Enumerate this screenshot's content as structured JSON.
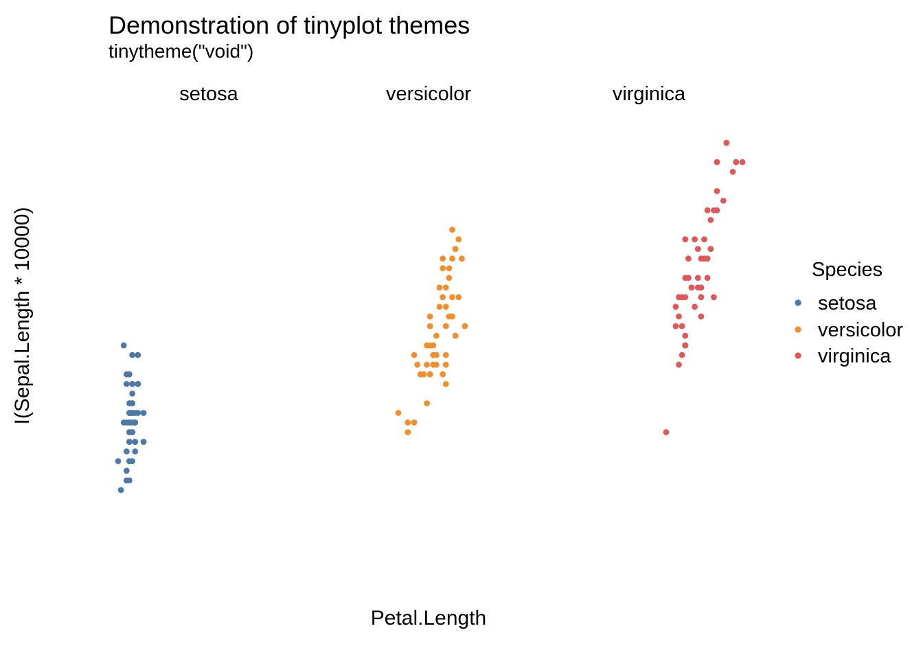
{
  "chart_data": {
    "type": "scatter",
    "title": "Demonstration of tinyplot themes",
    "subtitle": "tinytheme(\"void\")",
    "xlabel": "Petal.Length",
    "ylabel": "I(Sepal.Length * 10000)",
    "facet_by": "Species",
    "grid": false,
    "axes": false,
    "ylim": [
      41000,
      81000
    ],
    "legend": {
      "title": "Species",
      "position": "right",
      "entries": [
        {
          "name": "setosa",
          "color": "#4e79a7"
        },
        {
          "name": "versicolor",
          "color": "#f28e2b"
        },
        {
          "name": "virginica",
          "color": "#e15759"
        }
      ]
    },
    "facets": [
      {
        "label": "setosa",
        "xlim": [
          1.0,
          1.9
        ],
        "series": {
          "name": "setosa",
          "color": "#4e79a7",
          "points": [
            [
              1.4,
              51000
            ],
            [
              1.4,
              49000
            ],
            [
              1.3,
              47000
            ],
            [
              1.5,
              46000
            ],
            [
              1.4,
              50000
            ],
            [
              1.7,
              54000
            ],
            [
              1.4,
              46000
            ],
            [
              1.5,
              50000
            ],
            [
              1.4,
              44000
            ],
            [
              1.5,
              49000
            ],
            [
              1.5,
              54000
            ],
            [
              1.6,
              48000
            ],
            [
              1.4,
              48000
            ],
            [
              1.1,
              43000
            ],
            [
              1.2,
              58000
            ],
            [
              1.5,
              57000
            ],
            [
              1.3,
              54000
            ],
            [
              1.4,
              51000
            ],
            [
              1.7,
              57000
            ],
            [
              1.5,
              51000
            ],
            [
              1.7,
              54000
            ],
            [
              1.5,
              51000
            ],
            [
              1.0,
              46000
            ],
            [
              1.7,
              51000
            ],
            [
              1.9,
              48000
            ],
            [
              1.6,
              50000
            ],
            [
              1.6,
              50000
            ],
            [
              1.5,
              52000
            ],
            [
              1.4,
              52000
            ],
            [
              1.6,
              47000
            ],
            [
              1.6,
              48000
            ],
            [
              1.5,
              54000
            ],
            [
              1.5,
              52000
            ],
            [
              1.4,
              55000
            ],
            [
              1.5,
              49000
            ],
            [
              1.2,
              50000
            ],
            [
              1.3,
              55000
            ],
            [
              1.4,
              49000
            ],
            [
              1.3,
              44000
            ],
            [
              1.5,
              51000
            ],
            [
              1.3,
              50000
            ],
            [
              1.3,
              45000
            ],
            [
              1.3,
              44000
            ],
            [
              1.6,
              50000
            ],
            [
              1.9,
              51000
            ],
            [
              1.4,
              48000
            ],
            [
              1.6,
              51000
            ],
            [
              1.4,
              46000
            ],
            [
              1.5,
              53000
            ],
            [
              1.4,
              50000
            ]
          ]
        }
      },
      {
        "label": "versicolor",
        "xlim": [
          3.0,
          5.1
        ],
        "series": {
          "name": "versicolor",
          "color": "#f28e2b",
          "points": [
            [
              4.7,
              70000
            ],
            [
              4.5,
              64000
            ],
            [
              4.9,
              69000
            ],
            [
              4.0,
              55000
            ],
            [
              4.6,
              65000
            ],
            [
              4.5,
              57000
            ],
            [
              4.7,
              63000
            ],
            [
              3.3,
              49000
            ],
            [
              4.6,
              66000
            ],
            [
              3.9,
              52000
            ],
            [
              3.5,
              50000
            ],
            [
              4.2,
              59000
            ],
            [
              4.0,
              60000
            ],
            [
              4.7,
              61000
            ],
            [
              3.6,
              56000
            ],
            [
              4.4,
              67000
            ],
            [
              4.5,
              56000
            ],
            [
              4.1,
              58000
            ],
            [
              4.5,
              62000
            ],
            [
              3.9,
              56000
            ],
            [
              4.8,
              59000
            ],
            [
              4.0,
              61000
            ],
            [
              4.9,
              63000
            ],
            [
              4.7,
              61000
            ],
            [
              4.3,
              64000
            ],
            [
              4.4,
              66000
            ],
            [
              4.8,
              68000
            ],
            [
              5.0,
              67000
            ],
            [
              4.5,
              60000
            ],
            [
              3.5,
              57000
            ],
            [
              3.8,
              55000
            ],
            [
              3.7,
              55000
            ],
            [
              3.9,
              58000
            ],
            [
              5.1,
              60000
            ],
            [
              4.5,
              54000
            ],
            [
              4.5,
              60000
            ],
            [
              4.7,
              67000
            ],
            [
              4.4,
              63000
            ],
            [
              4.1,
              56000
            ],
            [
              4.0,
              55000
            ],
            [
              4.4,
              55000
            ],
            [
              4.6,
              61000
            ],
            [
              4.0,
              58000
            ],
            [
              3.3,
              50000
            ],
            [
              4.2,
              56000
            ],
            [
              4.2,
              57000
            ],
            [
              4.2,
              57000
            ],
            [
              4.3,
              62000
            ],
            [
              3.0,
              51000
            ],
            [
              4.1,
              57000
            ]
          ]
        }
      },
      {
        "label": "virginica",
        "xlim": [
          4.5,
          6.9
        ],
        "series": {
          "name": "virginica",
          "color": "#e15759",
          "points": [
            [
              6.0,
              63000
            ],
            [
              5.1,
              58000
            ],
            [
              5.9,
              71000
            ],
            [
              5.6,
              63000
            ],
            [
              5.8,
              65000
            ],
            [
              6.6,
              76000
            ],
            [
              4.5,
              49000
            ],
            [
              6.3,
              73000
            ],
            [
              5.8,
              67000
            ],
            [
              6.1,
              72000
            ],
            [
              5.1,
              65000
            ],
            [
              5.3,
              64000
            ],
            [
              5.5,
              68000
            ],
            [
              5.0,
              57000
            ],
            [
              5.1,
              58000
            ],
            [
              5.3,
              64000
            ],
            [
              5.5,
              65000
            ],
            [
              6.7,
              77000
            ],
            [
              6.9,
              77000
            ],
            [
              5.0,
              60000
            ],
            [
              5.7,
              69000
            ],
            [
              4.9,
              56000
            ],
            [
              6.7,
              77000
            ],
            [
              4.9,
              63000
            ],
            [
              5.7,
              67000
            ],
            [
              6.0,
              72000
            ],
            [
              4.8,
              62000
            ],
            [
              4.9,
              61000
            ],
            [
              5.6,
              64000
            ],
            [
              5.8,
              72000
            ],
            [
              6.1,
              74000
            ],
            [
              6.4,
              79000
            ],
            [
              5.6,
              64000
            ],
            [
              5.1,
              63000
            ],
            [
              5.6,
              61000
            ],
            [
              6.1,
              77000
            ],
            [
              5.6,
              63000
            ],
            [
              5.5,
              64000
            ],
            [
              4.8,
              60000
            ],
            [
              5.4,
              69000
            ],
            [
              5.6,
              67000
            ],
            [
              5.1,
              69000
            ],
            [
              5.1,
              58000
            ],
            [
              5.9,
              68000
            ],
            [
              5.7,
              67000
            ],
            [
              5.2,
              67000
            ],
            [
              5.0,
              63000
            ],
            [
              5.2,
              65000
            ],
            [
              5.4,
              62000
            ],
            [
              5.1,
              59000
            ]
          ]
        }
      }
    ]
  }
}
